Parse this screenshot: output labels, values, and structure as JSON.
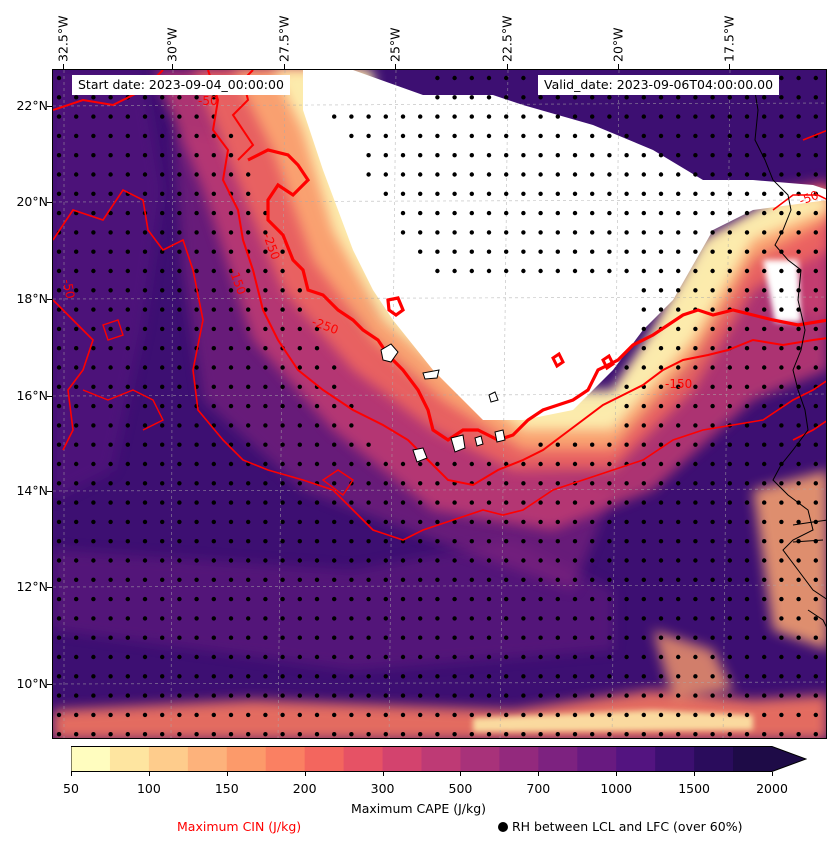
{
  "map": {
    "start_date": "Start date: 2023-09-04_00:00:00",
    "valid_date": "Valid_date: 2023-09-06T04:00:00.00",
    "lon_labels": [
      "32.5°W",
      "30°W",
      "27.5°W",
      "25°W",
      "22.5°W",
      "20°W",
      "17.5°W"
    ],
    "lat_labels": [
      "22°N",
      "20°N",
      "18°N",
      "16°N",
      "14°N",
      "12°N",
      "10°N"
    ],
    "contour_labels": [
      "-50",
      "-150",
      "-250",
      "-250",
      "-50",
      "-50",
      "-150"
    ],
    "colors": {
      "cape_low": "#fcfdbf",
      "cape_high": "#1e1249",
      "cin_contour": "#ff0000",
      "coast": "#000000"
    }
  },
  "colorbar": {
    "ticks": [
      "50",
      "100",
      "150",
      "200",
      "300",
      "500",
      "700",
      "1000",
      "1500",
      "2000"
    ],
    "label": "Maximum CAPE (J/kg)",
    "colors": [
      "#fffdbf",
      "#fee5a0",
      "#fecc8c",
      "#fdb27b",
      "#fc9a6a",
      "#fa8062",
      "#f3665e",
      "#e65265",
      "#d3436e",
      "#be3a75",
      "#a8327a",
      "#93297d",
      "#7d2280",
      "#681a80",
      "#531480",
      "#3c0f70",
      "#2a0c5c",
      "#1e0b47"
    ]
  },
  "legend": {
    "cin_label": "Maximum CIN (J/kg)",
    "rh_label": "RH between LCL and LFC (over 60%)"
  }
}
